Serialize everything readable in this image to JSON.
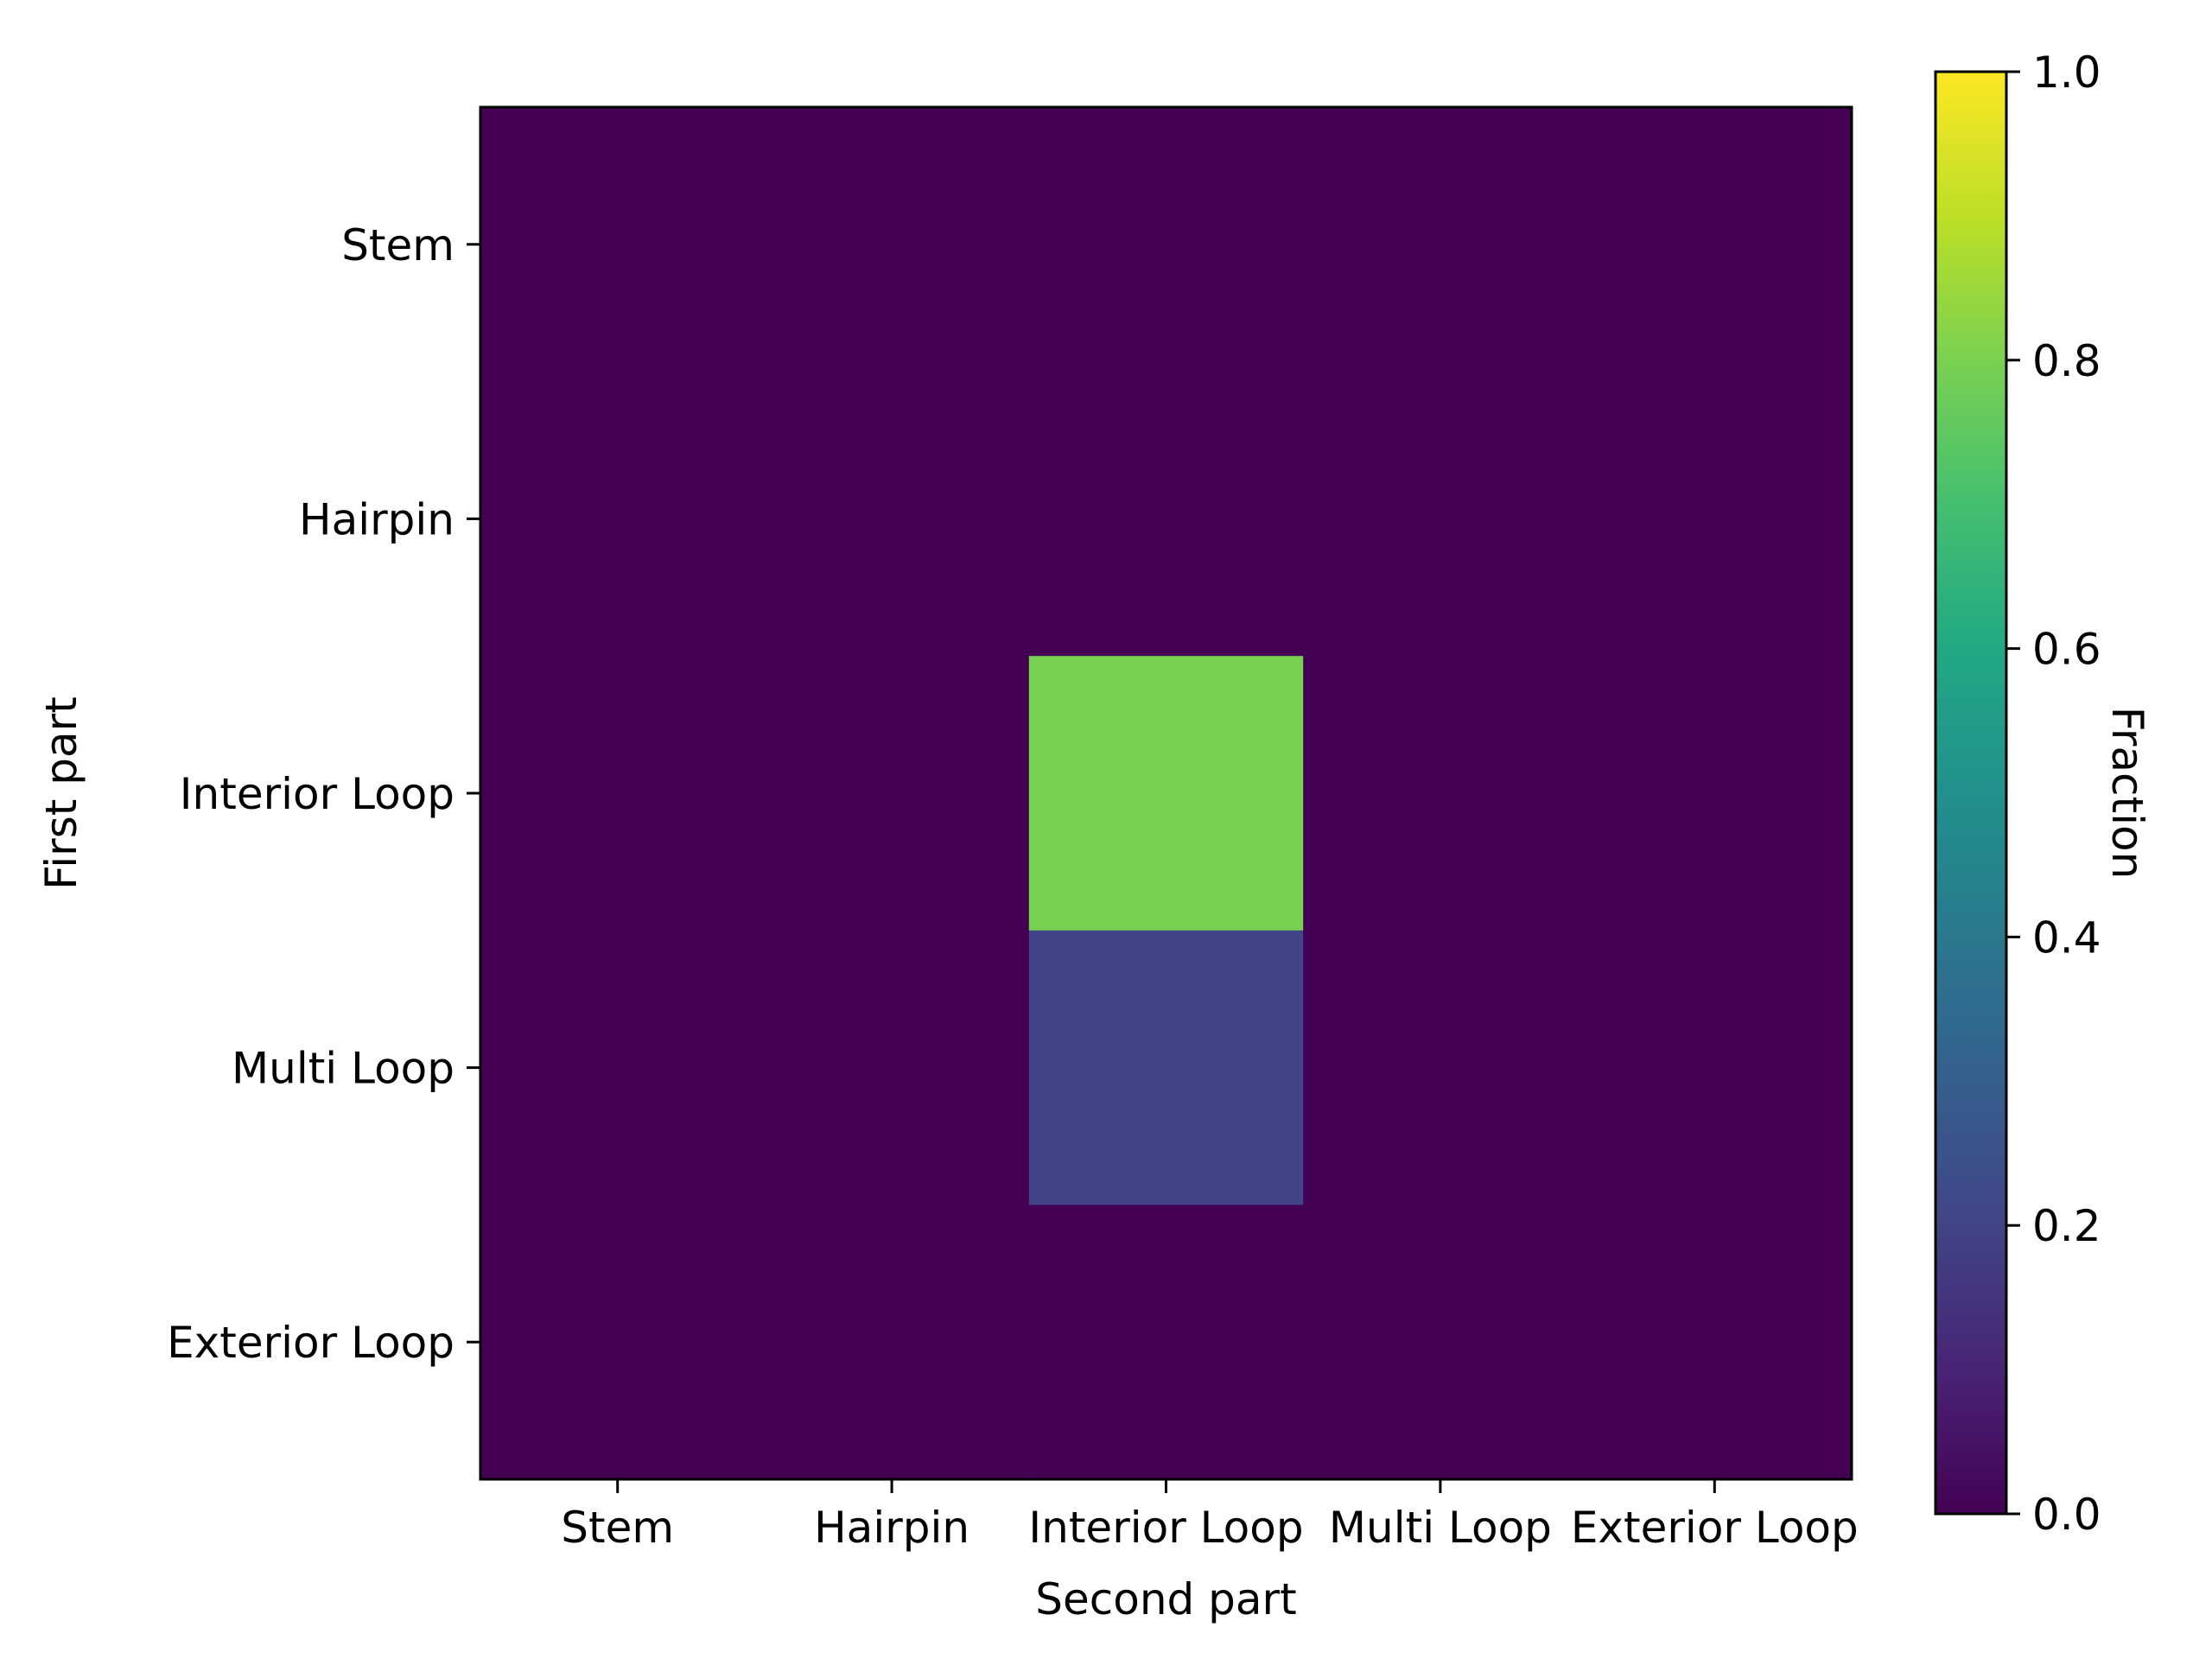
{
  "chart_data": {
    "type": "heatmap",
    "xlabel": "Second part",
    "ylabel": "First part",
    "x_categories": [
      "Stem",
      "Hairpin",
      "Interior Loop",
      "Multi Loop",
      "Exterior Loop"
    ],
    "y_categories": [
      "Stem",
      "Hairpin",
      "Interior Loop",
      "Multi Loop",
      "Exterior Loop"
    ],
    "values": [
      [
        0,
        0,
        0,
        0,
        0
      ],
      [
        0,
        0,
        0,
        0,
        0
      ],
      [
        0,
        0,
        0.8,
        0,
        0
      ],
      [
        0,
        0,
        0.2,
        0,
        0
      ],
      [
        0,
        0,
        0,
        0,
        0
      ]
    ],
    "colormap": "viridis",
    "colorbar": {
      "label": "Fraction",
      "range": [
        0,
        1
      ],
      "ticks": [
        "0.0",
        "0.2",
        "0.4",
        "0.6",
        "0.8",
        "1.0"
      ]
    },
    "grid": false
  }
}
